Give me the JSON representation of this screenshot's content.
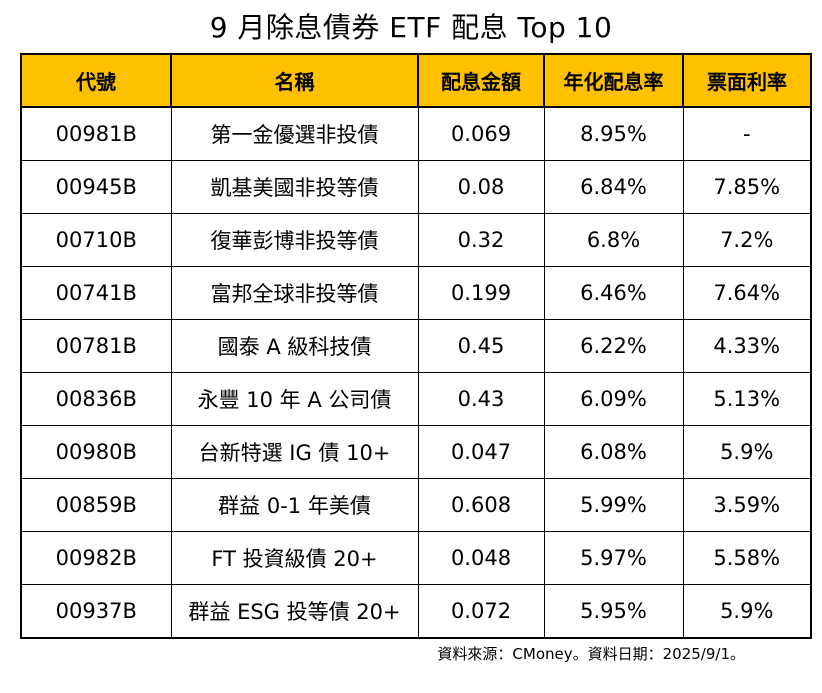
{
  "title": "9 月除息債券 ETF 配息 Top 10",
  "chart_data": {
    "type": "table",
    "title": "9 月除息債券 ETF 配息 Top 10",
    "columns": [
      "代號",
      "名稱",
      "配息金額",
      "年化配息率",
      "票面利率"
    ],
    "rows": [
      [
        "00981B",
        "第一金優選非投債",
        "0.069",
        "8.95%",
        "-"
      ],
      [
        "00945B",
        "凱基美國非投等債",
        "0.08",
        "6.84%",
        "7.85%"
      ],
      [
        "00710B",
        "復華彭博非投等債",
        "0.32",
        "6.8%",
        "7.2%"
      ],
      [
        "00741B",
        "富邦全球非投等債",
        "0.199",
        "6.46%",
        "7.64%"
      ],
      [
        "00781B",
        "國泰 A 級科技債",
        "0.45",
        "6.22%",
        "4.33%"
      ],
      [
        "00836B",
        "永豐 10 年 A 公司債",
        "0.43",
        "6.09%",
        "5.13%"
      ],
      [
        "00980B",
        "台新特選 IG 債 10+",
        "0.047",
        "6.08%",
        "5.9%"
      ],
      [
        "00859B",
        "群益 0-1 年美債",
        "0.608",
        "5.99%",
        "3.59%"
      ],
      [
        "00982B",
        "FT 投資級債 20+",
        "0.048",
        "5.97%",
        "5.58%"
      ],
      [
        "00937B",
        "群益 ESG 投等債 20+",
        "0.072",
        "5.95%",
        "5.9%"
      ]
    ]
  },
  "footer": {
    "source_note": "資料來源：CMoney。資料日期：2025/9/1。"
  },
  "colors": {
    "header_bg": "#FFC000",
    "border": "#000000",
    "text": "#000000",
    "row_bg": "#FFFFFF"
  }
}
